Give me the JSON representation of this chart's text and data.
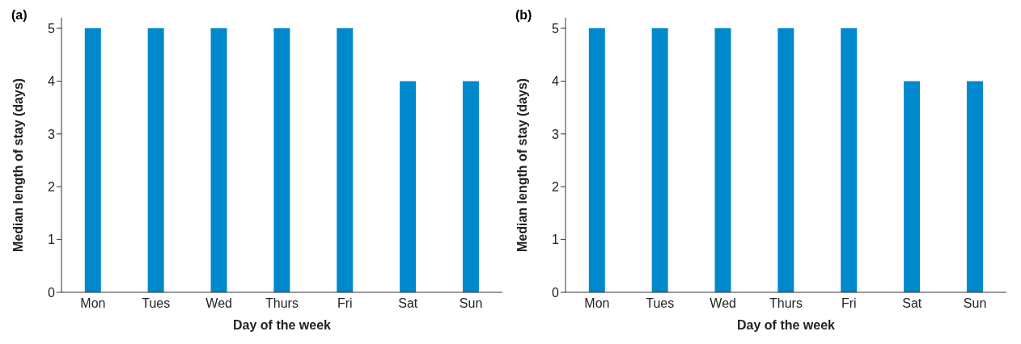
{
  "chart_data": [
    {
      "type": "bar",
      "title": "(a)",
      "xlabel": "Day of the week",
      "ylabel": "Median length of stay (days)",
      "categories": [
        "Mon",
        "Tues",
        "Wed",
        "Thurs",
        "Fri",
        "Sat",
        "Sun"
      ],
      "values": [
        5,
        5,
        5,
        5,
        5,
        4,
        4
      ],
      "color": "#0088cc",
      "ylim": [
        0,
        5.2
      ],
      "yticks": [
        0,
        1,
        2,
        3,
        4,
        5
      ],
      "grid": false,
      "legend": false
    },
    {
      "type": "bar",
      "title": "(b)",
      "xlabel": "Day of the week",
      "ylabel": "Median length of stay (days)",
      "categories": [
        "Mon",
        "Tues",
        "Wed",
        "Thurs",
        "Fri",
        "Sat",
        "Sun"
      ],
      "values": [
        5,
        5,
        5,
        5,
        5,
        4,
        4
      ],
      "color": "#0088cc",
      "ylim": [
        0,
        5.2
      ],
      "yticks": [
        0,
        1,
        2,
        3,
        4,
        5
      ],
      "grid": false,
      "legend": false
    }
  ]
}
